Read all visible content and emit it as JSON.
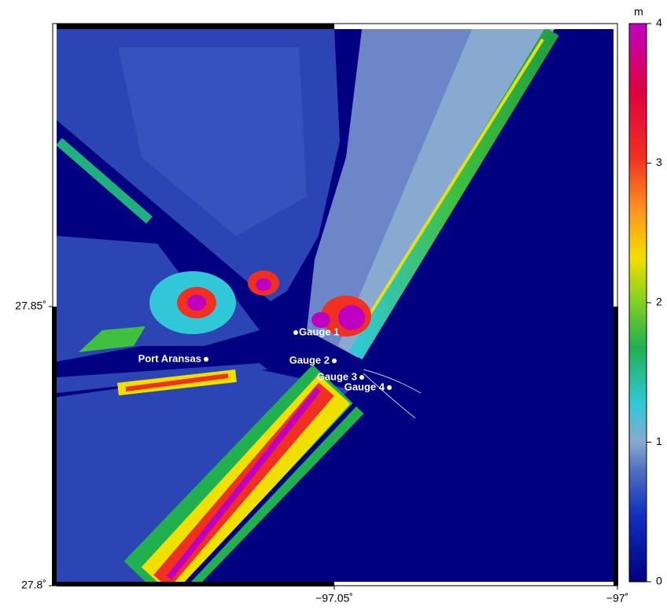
{
  "map": {
    "lat_ticks": [
      {
        "value": 27.85,
        "label": "27.85˚"
      },
      {
        "value": 27.8,
        "label": "27.8˚"
      }
    ],
    "lon_ticks": [
      {
        "value": -97.05,
        "label": "−97.05˚"
      },
      {
        "value": -97,
        "label": "−97˚"
      }
    ],
    "places": [
      {
        "label": "Port Aransas"
      },
      {
        "label": "Gauge 1"
      },
      {
        "label": "Gauge 2"
      },
      {
        "label": "Gauge 3"
      },
      {
        "label": "Gauge 4"
      }
    ]
  },
  "colorbar": {
    "unit": "m",
    "lim": [
      0,
      4
    ],
    "ticks": [
      0,
      1,
      2,
      3,
      4
    ]
  }
}
